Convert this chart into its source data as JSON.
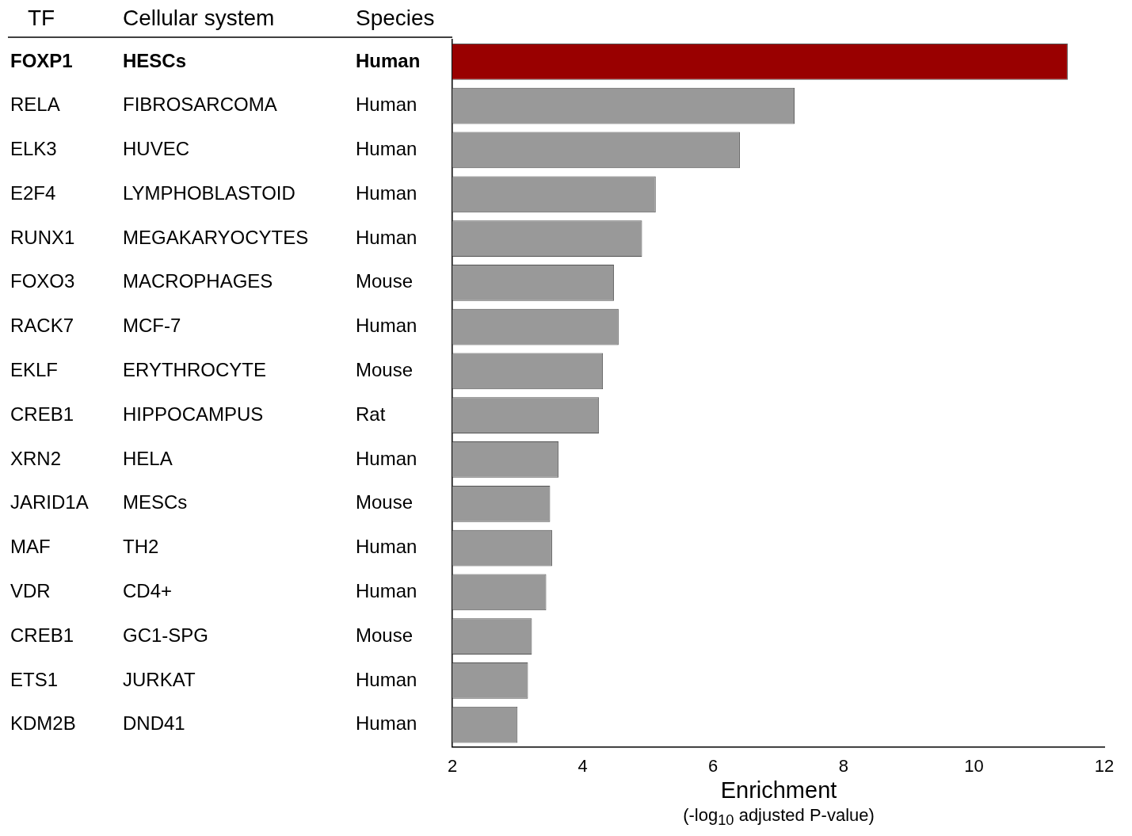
{
  "chart_data": {
    "type": "bar",
    "orientation": "horizontal",
    "categories": [
      "FOXP1\tHESCs\tHuman",
      "RELA\tFIBROSARCOMA\tHuman",
      "ELK3\tHUVEC\tHuman",
      "E2F4\tLYMPHOBLASTOID\tHuman",
      "RUNX1\tMEGAKARYOCYTES\tHuman",
      "FOXO3\tMACROPHAGES\tMouse",
      "RACK7\tMCF-7\tHuman",
      "EKLF\tERYTHROCYTE\tMouse",
      "CREB1\tHIPPOCAMPUS\tRat",
      "XRN2\tHELA\tHuman",
      "JARID1A\tMESCs\tMouse",
      "MAF\tTH2\tHuman",
      "VDR\tCD4+\tHuman",
      "CREB1\tGC1-SPG\tMouse",
      "ETS1\tJURKAT\tHuman",
      "KDM2B\tDND41\tHuman"
    ],
    "values": [
      11.44,
      7.25,
      6.41,
      5.12,
      4.91,
      4.48,
      4.55,
      4.31,
      4.25,
      3.63,
      3.5,
      3.53,
      3.44,
      3.22,
      3.16,
      3.0
    ],
    "colors": [
      "#990000",
      "#999999",
      "#999999",
      "#999999",
      "#999999",
      "#999999",
      "#999999",
      "#999999",
      "#999999",
      "#999999",
      "#999999",
      "#999999",
      "#999999",
      "#999999",
      "#999999",
      "#999999"
    ],
    "xlim": [
      2,
      12
    ],
    "xticks": [
      2,
      4,
      6,
      8,
      10,
      12
    ],
    "xlabel": "Enrichment\n(-log$_{10}$ adjusted P-value)",
    "annotations": [
      "TF",
      "Cellular system",
      "Species"
    ],
    "grid": false,
    "legend": false
  }
}
